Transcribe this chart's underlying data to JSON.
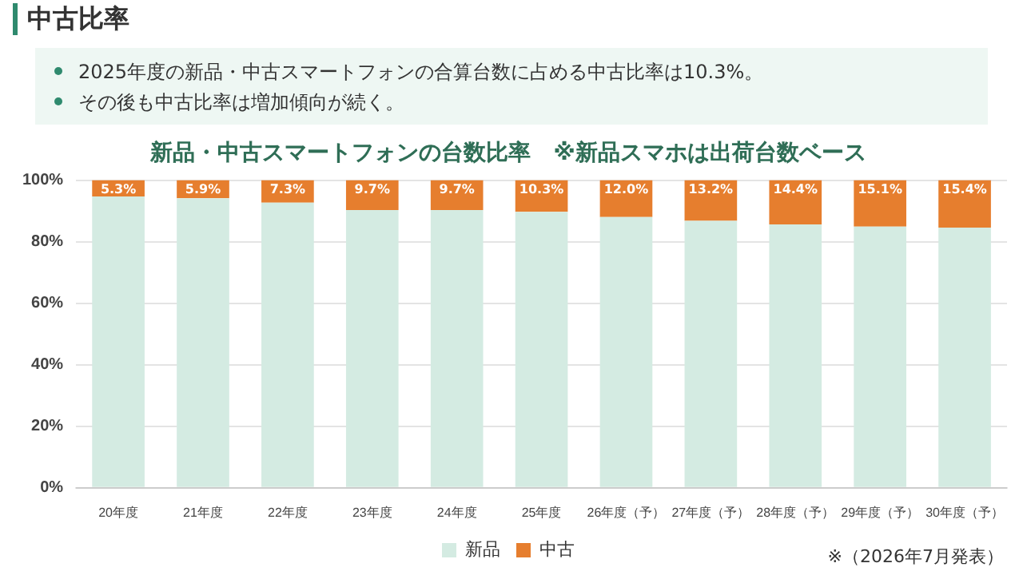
{
  "chart_data": {
    "type": "bar",
    "stacked": true,
    "title": "中古比率",
    "subtitle": "新品・中古スマートフォンの台数比率　※新品スマホは出荷台数ベース",
    "annotations": [
      "2025年度の新品・中古スマートフォンの合算台数に占める中古比率は10.3%。",
      "その後も中古比率は増加傾向が続く。",
      "※（2026年7月発表）"
    ],
    "categories": [
      "20年度",
      "21年度",
      "22年度",
      "23年度",
      "24年度",
      "25年度",
      "26年度（予）",
      "27年度（予）",
      "28年度（予）",
      "29年度（予）",
      "30年度（予）"
    ],
    "series": [
      {
        "name": "新品",
        "color": "#d4ebe2",
        "values": [
          94.7,
          94.1,
          92.7,
          90.3,
          90.3,
          89.7,
          88.0,
          86.8,
          85.6,
          84.9,
          84.6
        ]
      },
      {
        "name": "中古",
        "color": "#e67e2e",
        "values": [
          5.3,
          5.9,
          7.3,
          9.7,
          9.7,
          10.3,
          12.0,
          13.2,
          14.4,
          15.1,
          15.4
        ],
        "value_labels": [
          "5.3%",
          "5.9%",
          "7.3%",
          "9.7%",
          "9.7%",
          "10.3%",
          "12.0%",
          "13.2%",
          "14.4%",
          "15.1%",
          "15.4%"
        ]
      }
    ],
    "ylim": [
      0,
      100
    ],
    "yticks": [
      {
        "value": 0,
        "label": "0%"
      },
      {
        "value": 20,
        "label": "20%"
      },
      {
        "value": 40,
        "label": "40%"
      },
      {
        "value": 60,
        "label": "60%"
      },
      {
        "value": 80,
        "label": "80%"
      },
      {
        "value": 100,
        "label": "100%"
      }
    ],
    "grid": "y",
    "legend": "bottom"
  }
}
